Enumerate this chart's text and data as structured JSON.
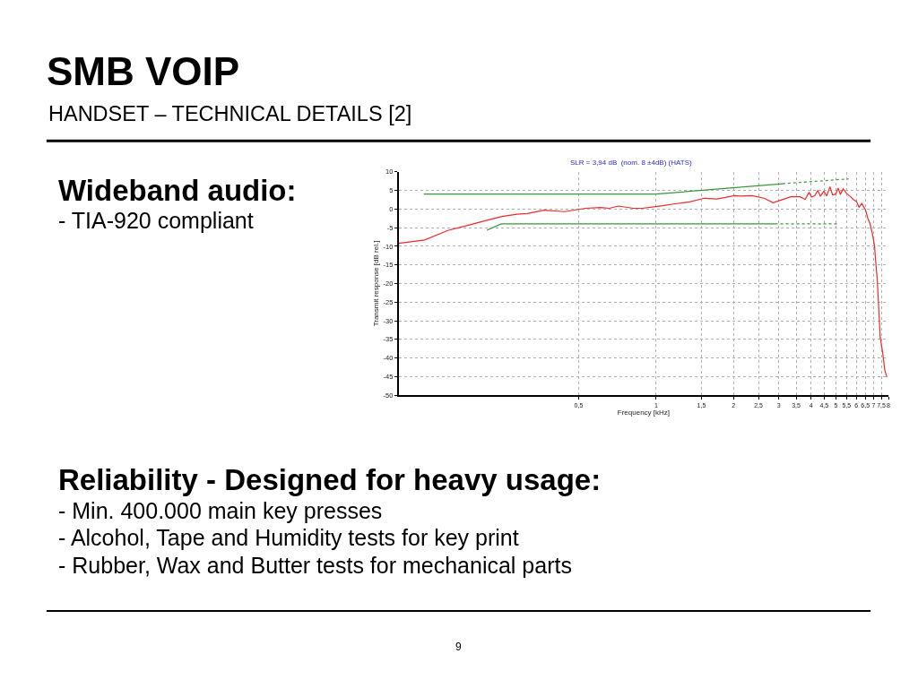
{
  "chart_data": {
    "type": "line",
    "title": "SMB VOIP",
    "subtitle": "HANDSET – TECHNICAL DETAILS [2]",
    "xlabel": "Frequency [kHz]",
    "ylabel": "Transmit response [dB rel.]",
    "annotations": [
      "SLR = 3,94 dB  (nom. 8 ±4dB) (HATS)",
      "Wideband audio:",
      "- TIA-920 compliant",
      "Reliability - Designed for heavy usage:",
      "- Min. 400.000 main key presses",
      "- Alcohol, Tape and Humidity tests for key print",
      "- Rubber, Wax and Butter tests for mechanical parts",
      "9"
    ],
    "log": "x",
    "grid": true,
    "xlim": [
      0.1,
      8
    ],
    "ylim": [
      -50,
      10
    ],
    "xticks": [
      {
        "value": 0.5,
        "label": "0,5"
      },
      1,
      {
        "value": 1.5,
        "label": "1,5"
      },
      2,
      {
        "value": 2.5,
        "label": "2,5"
      },
      3,
      {
        "value": 3.5,
        "label": "3,5"
      },
      4,
      {
        "value": 4.5,
        "label": "4,5"
      },
      5,
      {
        "value": 5.5,
        "label": "5,5"
      },
      6,
      {
        "value": 6.5,
        "label": "6,5"
      },
      7,
      {
        "value": 7.5,
        "label": "7,5"
      },
      8
    ],
    "yticks": [
      10,
      5,
      0,
      -5,
      -10,
      -15,
      -20,
      -25,
      -30,
      -35,
      -40,
      -45,
      -50
    ],
    "series": [
      {
        "color": "#3c963c",
        "line_style": "solid",
        "x": [
          0.125,
          1,
          3.1
        ],
        "values": [
          4,
          4,
          6.8
        ]
      },
      {
        "color": "#3c963c",
        "line_style": "dotted",
        "x": [
          3.1,
          5.6
        ],
        "values": [
          6.8,
          8.1
        ]
      },
      {
        "color": "#3c963c",
        "line_style": "solid",
        "x": [
          0.22,
          0.25,
          2.9
        ],
        "values": [
          -5.7,
          -4,
          -4
        ]
      },
      {
        "color": "#3c963c",
        "line_style": "dotted",
        "x": [
          2.9,
          5.1
        ],
        "values": [
          -4,
          -4
        ]
      },
      {
        "color": "#ee2a2a",
        "line_style": "solid",
        "x": [
          0.1,
          0.126,
          0.156,
          0.188,
          0.215,
          0.252,
          0.288,
          0.316,
          0.367,
          0.441,
          0.532,
          0.608,
          0.658,
          0.713,
          0.815,
          0.883,
          0.98,
          1.06,
          1.18,
          1.35,
          1.54,
          1.72,
          1.86,
          2.01,
          2.13,
          2.36,
          2.63,
          2.85,
          3.09,
          3.34,
          3.62,
          3.8,
          3.93,
          4.02,
          4.14,
          4.25,
          4.35,
          4.49,
          4.6,
          4.74,
          4.85,
          4.99,
          5.1,
          5.2,
          5.33,
          5.5,
          5.7,
          5.85,
          6.0,
          6.15,
          6.3,
          6.52,
          6.65,
          6.78,
          6.93,
          7.06,
          7.13,
          7.23,
          7.33,
          7.43,
          7.59,
          7.74,
          7.89
        ],
        "values": [
          -9.2,
          -8.3,
          -5.7,
          -4.3,
          -3.2,
          -2.0,
          -1.4,
          -1.2,
          -0.3,
          -0.7,
          0.2,
          0.4,
          0.2,
          0.8,
          0.2,
          0.2,
          0.6,
          0.9,
          1.4,
          1.9,
          2.9,
          2.7,
          3.1,
          3.6,
          3.5,
          3.6,
          2.9,
          1.7,
          2.5,
          3.3,
          3.3,
          2.6,
          4.5,
          3.2,
          3.6,
          5.0,
          3.4,
          4.8,
          3.5,
          6.0,
          3.8,
          4.0,
          5.6,
          3.9,
          5.4,
          4.2,
          3.3,
          2.5,
          2.1,
          0.5,
          1.5,
          -0.3,
          -2.5,
          -3.9,
          -6.7,
          -9.8,
          -13.8,
          -18.6,
          -26.5,
          -34.5,
          -38.4,
          -43.2,
          -45.2
        ]
      }
    ]
  }
}
